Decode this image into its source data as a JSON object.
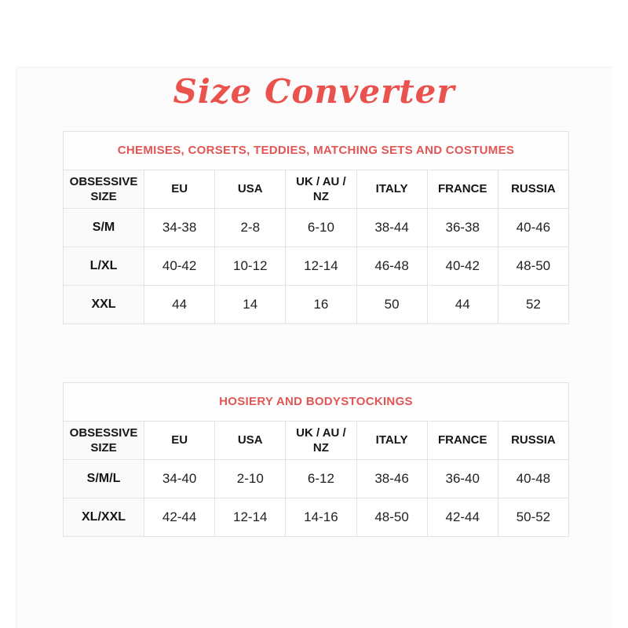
{
  "page": {
    "title": "Size Converter"
  },
  "colors": {
    "title_accent": "#ea524e",
    "caption_accent": "#e25555",
    "table_border": "#e3e3e3",
    "body_text": "#222222",
    "header_text": "#151515",
    "size_column_bg": "#fafafa",
    "page_bg": "#ffffff"
  },
  "tables": [
    {
      "caption": "CHEMISES, CORSETS, TEDDIES, MATCHING SETS AND COSTUMES",
      "headers": [
        "OBSESSIVE SIZE",
        "EU",
        "USA",
        "UK / AU / NZ",
        "ITALY",
        "FRANCE",
        "RUSSIA"
      ],
      "rows": [
        [
          "S/M",
          "34-38",
          "2-8",
          "6-10",
          "38-44",
          "36-38",
          "40-46"
        ],
        [
          "L/XL",
          "40-42",
          "10-12",
          "12-14",
          "46-48",
          "40-42",
          "48-50"
        ],
        [
          "XXL",
          "44",
          "14",
          "16",
          "50",
          "44",
          "52"
        ]
      ]
    },
    {
      "caption": "HOSIERY AND BODYSTOCKINGS",
      "headers": [
        "OBSESSIVE SIZE",
        "EU",
        "USA",
        "UK / AU / NZ",
        "ITALY",
        "FRANCE",
        "RUSSIA"
      ],
      "rows": [
        [
          "S/M/L",
          "34-40",
          "2-10",
          "6-12",
          "38-46",
          "36-40",
          "40-48"
        ],
        [
          "XL/XXL",
          "42-44",
          "12-14",
          "14-16",
          "48-50",
          "42-44",
          "50-52"
        ]
      ]
    }
  ]
}
